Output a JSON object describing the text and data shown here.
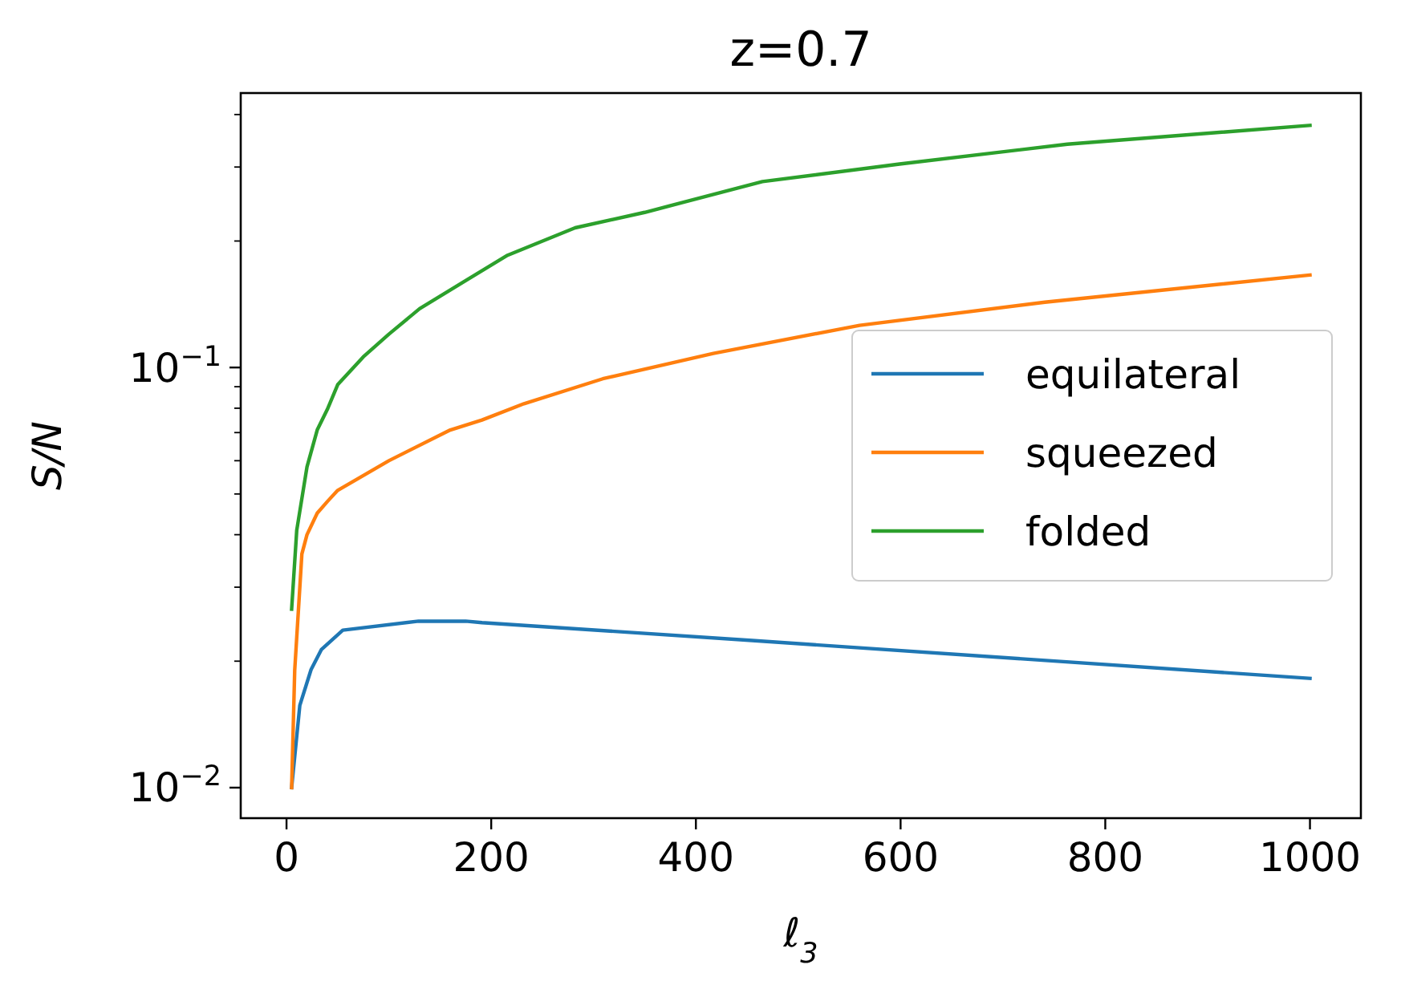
{
  "chart_data": {
    "type": "line",
    "title": "z=0.7",
    "xlabel": "ℓ$_{3}$",
    "ylabel": "S/N",
    "log": "y",
    "grid": false,
    "legend": "center right",
    "xlim": [
      -44.75,
      1049.75
    ],
    "ylim": [
      0.00846,
      0.45
    ],
    "xticks": [
      0,
      200,
      400,
      600,
      800,
      1000
    ],
    "yticks": [
      {
        "value": 0.01,
        "label": "10$^{−2}$"
      },
      {
        "value": 0.02,
        "label": null
      },
      {
        "value": 0.03,
        "label": null
      },
      {
        "value": 0.04,
        "label": null
      },
      {
        "value": 0.05,
        "label": null
      },
      {
        "value": 0.06,
        "label": null
      },
      {
        "value": 0.07,
        "label": null
      },
      {
        "value": 0.08,
        "label": null
      },
      {
        "value": 0.09,
        "label": null
      },
      {
        "value": 0.1,
        "label": "10$^{−1}$"
      },
      {
        "value": 0.2,
        "label": null
      },
      {
        "value": 0.3,
        "label": null
      },
      {
        "value": 0.4,
        "label": null
      }
    ],
    "series": [
      {
        "name": "equilateral",
        "color": "#1f77b4",
        "x": [
          5,
          13,
          24,
          34,
          55,
          129,
          175,
          191,
          455,
          1000
        ],
        "values": [
          0.01,
          0.0157,
          0.0191,
          0.0213,
          0.0237,
          0.0249,
          0.0249,
          0.0247,
          0.0224,
          0.0182
        ]
      },
      {
        "name": "squeezed",
        "color": "#ff7f0e",
        "x": [
          5,
          8,
          15,
          20,
          30,
          40,
          50,
          100,
          160,
          191,
          232,
          309,
          417,
          560,
          741,
          1000
        ],
        "values": [
          0.01,
          0.019,
          0.036,
          0.04,
          0.045,
          0.048,
          0.051,
          0.06,
          0.071,
          0.075,
          0.082,
          0.094,
          0.108,
          0.126,
          0.143,
          0.166
        ]
      },
      {
        "name": "folded",
        "color": "#2ca02c",
        "x": [
          5,
          10,
          20,
          30,
          40,
          50,
          75,
          100,
          130,
          175,
          216,
          282,
          350,
          465,
          599,
          763,
          1000
        ],
        "values": [
          0.0266,
          0.041,
          0.058,
          0.071,
          0.0796,
          0.091,
          0.106,
          0.12,
          0.138,
          0.161,
          0.185,
          0.215,
          0.234,
          0.277,
          0.305,
          0.34,
          0.377
        ]
      }
    ]
  }
}
